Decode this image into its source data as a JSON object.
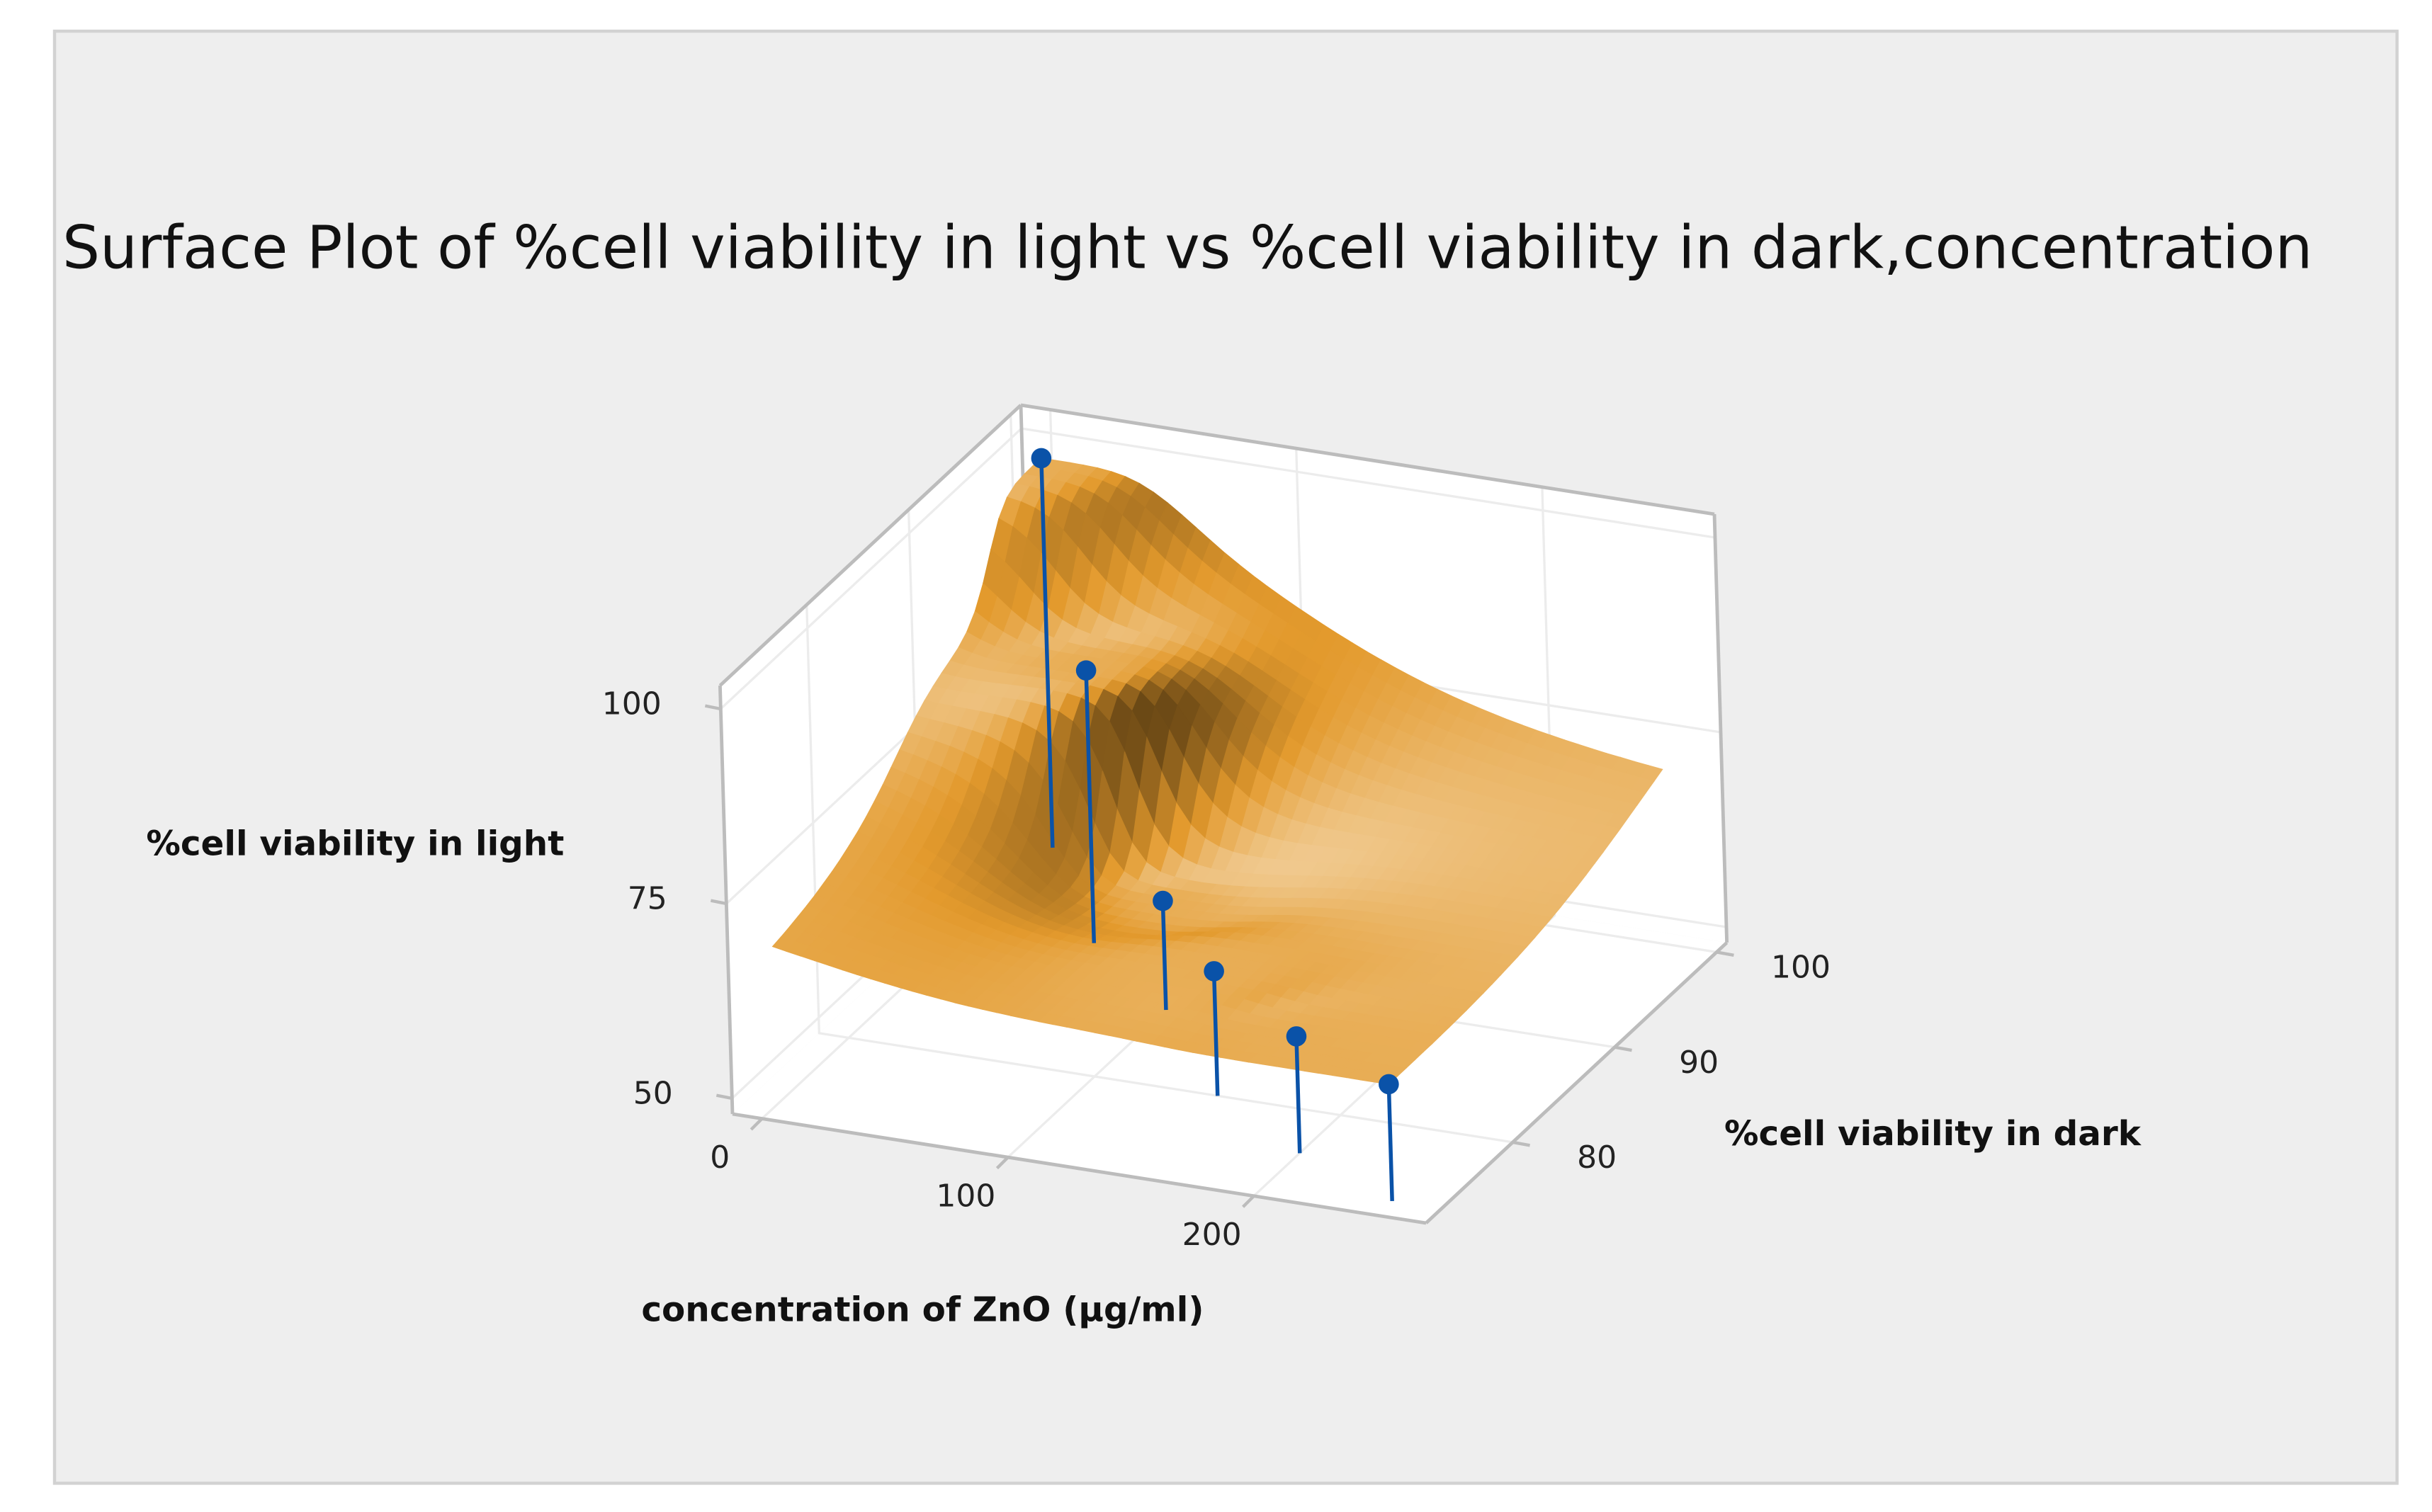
{
  "chart_data": {
    "type": "surface",
    "title": "Surface Plot of %cell viability in light vs %cell viability in dark,concentration",
    "xlabel": "concentration of ZnO (µg/ml)",
    "ylabel": "%cell viability in dark",
    "zlabel": "%cell viability in light",
    "x": [
      0,
      50,
      100,
      150,
      200,
      250
    ],
    "y": [
      100,
      92,
      87,
      80,
      76,
      73
    ],
    "z": [
      98,
      83,
      62,
      64,
      63,
      63
    ],
    "xlim": [
      -12,
      270
    ],
    "ylim": [
      71.5,
      101
    ],
    "zlim": [
      48,
      103
    ],
    "xticks": [
      0,
      100,
      200
    ],
    "yticks": [
      80,
      90,
      100
    ],
    "zticks": [
      50,
      75,
      100
    ],
    "surface_color": "#e39a2d",
    "point_color": "#0a52a8",
    "grid": true
  }
}
